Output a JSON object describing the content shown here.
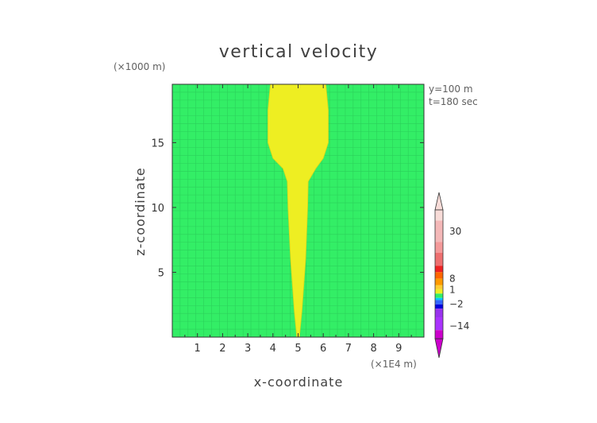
{
  "chart_data": {
    "type": "heatmap",
    "title": "vertical velocity",
    "xlabel": "x-coordinate",
    "ylabel": "z-coordinate",
    "x_unit": "(×1E4 m)",
    "y_unit": "(×1000 m)",
    "annotations": [
      "y=100 m",
      "t=180 sec"
    ],
    "xlim": [
      0,
      10
    ],
    "ylim": [
      0,
      19.5
    ],
    "x_ticks": [
      1,
      2,
      3,
      4,
      5,
      6,
      7,
      8,
      9
    ],
    "y_ticks": [
      5,
      10,
      15
    ],
    "grid": true,
    "background_value_color": "#33ee66",
    "plume_color": "#eeee22",
    "plume_outline": [
      {
        "z": 0.0,
        "x_left": 4.95,
        "x_right": 5.05
      },
      {
        "z": 2.0,
        "x_left": 4.85,
        "x_right": 5.15
      },
      {
        "z": 6.0,
        "x_left": 4.7,
        "x_right": 5.3
      },
      {
        "z": 10.0,
        "x_left": 4.6,
        "x_right": 5.38
      },
      {
        "z": 12.0,
        "x_left": 4.57,
        "x_right": 5.4
      },
      {
        "z": 13.0,
        "x_left": 4.4,
        "x_right": 5.7
      },
      {
        "z": 13.8,
        "x_left": 4.0,
        "x_right": 6.0
      },
      {
        "z": 15.0,
        "x_left": 3.8,
        "x_right": 6.2
      },
      {
        "z": 17.5,
        "x_left": 3.8,
        "x_right": 6.2
      },
      {
        "z": 19.5,
        "x_left": 3.9,
        "x_right": 6.1
      }
    ],
    "colorbar": {
      "tick_labels": [
        "30",
        "8",
        "1",
        "−2",
        "−14"
      ],
      "tick_values": [
        30,
        8,
        1,
        -2,
        -14
      ],
      "vmin": -20,
      "vmax": 40,
      "segments": [
        {
          "from": 40,
          "to": 35,
          "color": "#f8dcd8"
        },
        {
          "from": 35,
          "to": 25,
          "color": "#f4b8b8"
        },
        {
          "from": 25,
          "to": 20,
          "color": "#f49a9a"
        },
        {
          "from": 20,
          "to": 14,
          "color": "#ee7070"
        },
        {
          "from": 14,
          "to": 11,
          "color": "#ee2222"
        },
        {
          "from": 11,
          "to": 8,
          "color": "#ff6600"
        },
        {
          "from": 8,
          "to": 5,
          "color": "#ff9900"
        },
        {
          "from": 5,
          "to": 3,
          "color": "#ffcc33"
        },
        {
          "from": 3,
          "to": 1,
          "color": "#eeee22"
        },
        {
          "from": 1,
          "to": -1,
          "color": "#33ee66"
        },
        {
          "from": -1,
          "to": -2,
          "color": "#00ccff"
        },
        {
          "from": -2,
          "to": -4,
          "color": "#3366ff"
        },
        {
          "from": -4,
          "to": -6,
          "color": "#0000dd"
        },
        {
          "from": -6,
          "to": -10,
          "color": "#9933ee"
        },
        {
          "from": -10,
          "to": -16,
          "color": "#aa33ff"
        },
        {
          "from": -16,
          "to": -20,
          "color": "#cc00cc"
        }
      ],
      "top_triangle_color": "#f8dcd8",
      "bottom_triangle_color": "#cc00cc"
    }
  }
}
